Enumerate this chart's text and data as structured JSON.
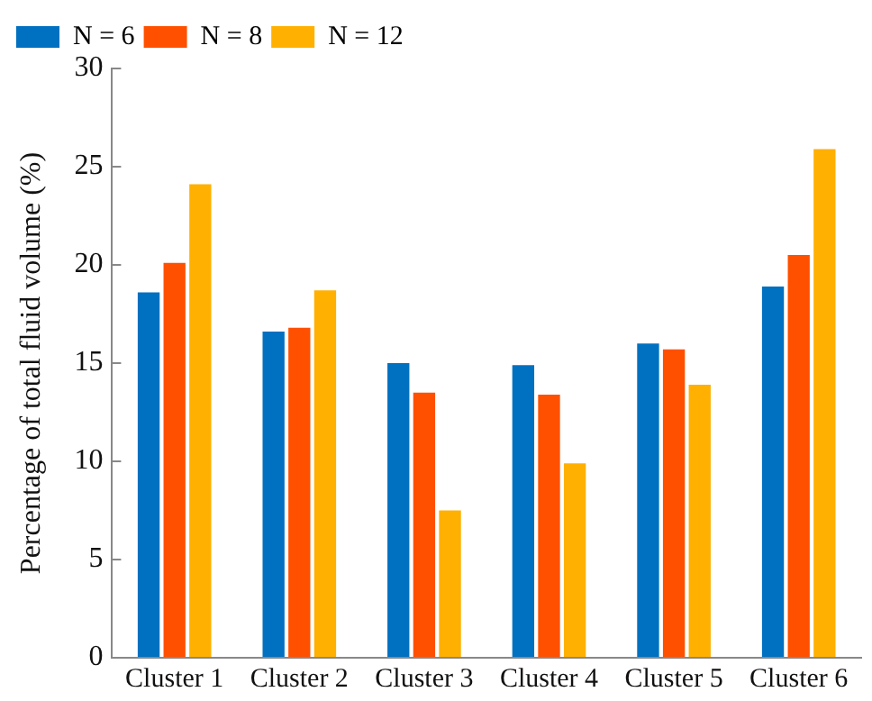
{
  "chart_data": {
    "type": "bar",
    "ylabel": "Percentage of total fluid volume (%)",
    "categories": [
      "Cluster 1",
      "Cluster 2",
      "Cluster 3",
      "Cluster 4",
      "Cluster 5",
      "Cluster 6"
    ],
    "series": [
      {
        "name": "N = 6",
        "color": "#0070c0",
        "values": [
          18.6,
          16.6,
          15.0,
          14.9,
          16.0,
          18.9
        ]
      },
      {
        "name": "N = 8",
        "color": "#ff5000",
        "values": [
          20.1,
          16.8,
          13.5,
          13.4,
          15.7,
          20.5
        ]
      },
      {
        "name": "N = 12",
        "color": "#ffb000",
        "values": [
          24.1,
          18.7,
          7.5,
          9.9,
          13.9,
          25.9
        ]
      }
    ],
    "ylim": [
      0,
      30
    ],
    "yticks": [
      0,
      5,
      10,
      15,
      20,
      25,
      30
    ],
    "grid": false,
    "legend": "top left"
  }
}
